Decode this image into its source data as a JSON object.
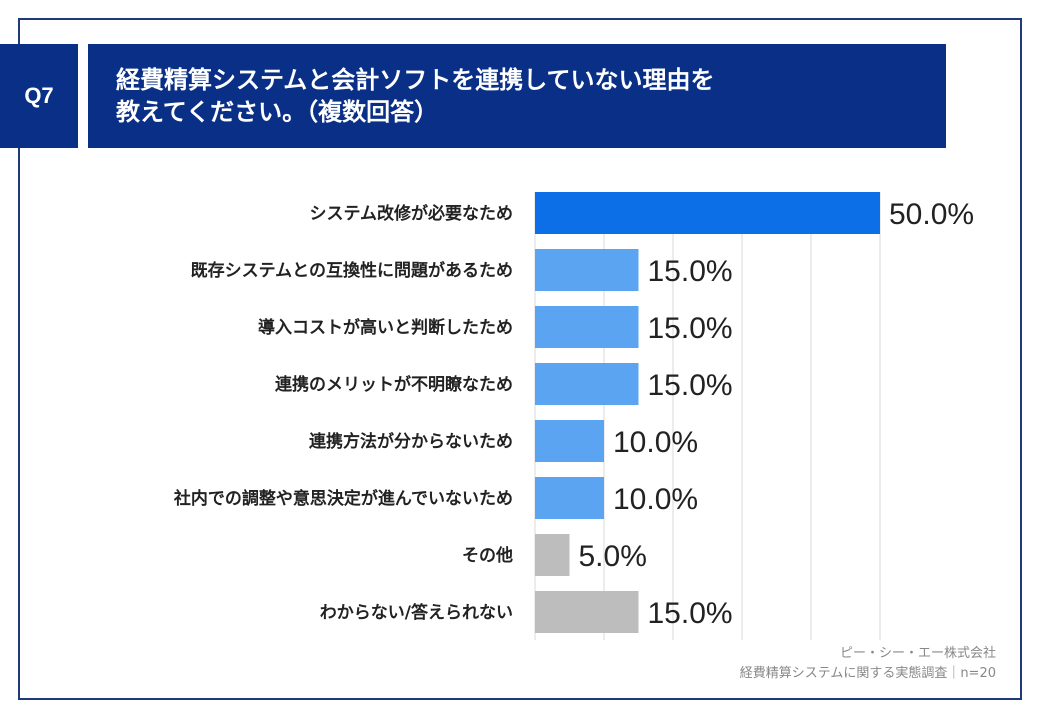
{
  "header": {
    "badge": "Q7",
    "title_line1": "経費精算システムと会計ソフトを連携していない理由を",
    "title_line2": "教えてください。（複数回答）"
  },
  "footer": {
    "company": "ピー・シー・エー株式会社",
    "survey": "経費精算システムに関する実態調査｜n=20"
  },
  "colors": {
    "primary": "#0d6fe8",
    "secondary": "#5ba4f2",
    "other": "#bdbdbd",
    "header": "#0a2f86"
  },
  "chart_data": {
    "type": "bar",
    "orientation": "horizontal",
    "title": "経費精算システムと会計ソフトを連携していない理由を教えてください。（複数回答）",
    "xlim": [
      0,
      100
    ],
    "grid": true,
    "categories": [
      "システム改修が必要なため",
      "既存システムとの互換性に問題があるため",
      "導入コストが高いと判断したため",
      "連携のメリットが不明瞭なため",
      "連携方法が分からないため",
      "社内での調整や意思決定が進んでいないため",
      "その他",
      "わからない/答えられない"
    ],
    "values": [
      50.0,
      15.0,
      15.0,
      15.0,
      10.0,
      10.0,
      5.0,
      15.0
    ],
    "value_labels": [
      "50.0%",
      "15.0%",
      "15.0%",
      "15.0%",
      "10.0%",
      "10.0%",
      "5.0%",
      "15.0%"
    ],
    "bar_colors": [
      "primary",
      "secondary",
      "secondary",
      "secondary",
      "secondary",
      "secondary",
      "other",
      "other"
    ]
  }
}
